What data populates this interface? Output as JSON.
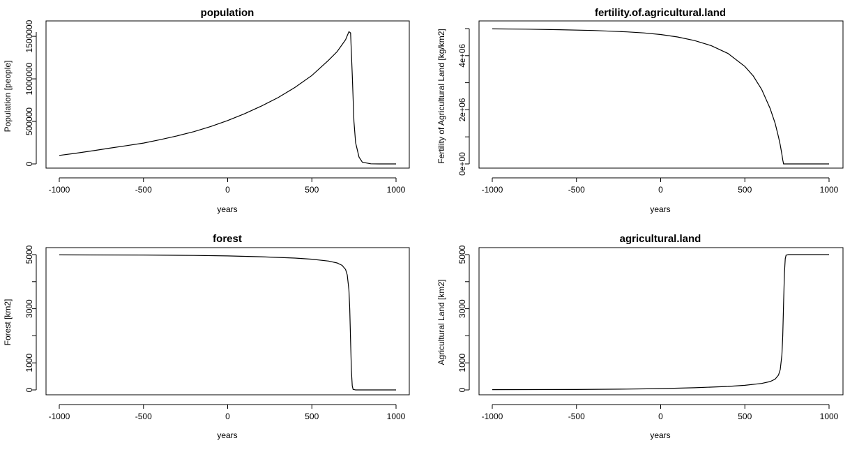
{
  "colors": {
    "background": "#ffffff",
    "line": "#000000",
    "axis": "#000000"
  },
  "chart_data": [
    {
      "type": "line",
      "title": "population",
      "xlabel": "years",
      "ylabel": "Population [people]",
      "xlim": [
        -1000,
        1000
      ],
      "ylim": [
        0,
        1550000
      ],
      "x_ticks": [
        -1000,
        -500,
        0,
        500,
        1000
      ],
      "x_tick_labels": [
        "-1000",
        "-500",
        "0",
        "500",
        "1000"
      ],
      "y_ticks": [
        0,
        500000,
        1000000,
        1500000
      ],
      "y_tick_labels": [
        "0",
        "500000",
        "1000000",
        "1500000"
      ],
      "grid": false,
      "series": [
        {
          "x": [
            -1000,
            -900,
            -800,
            -700,
            -600,
            -500,
            -400,
            -300,
            -200,
            -100,
            0,
            100,
            200,
            300,
            400,
            500,
            600,
            650,
            700,
            720,
            730,
            740,
            750,
            760,
            780,
            800,
            850,
            900,
            1000
          ],
          "y": [
            100000,
            126000,
            155000,
            185000,
            215000,
            245000,
            285000,
            330000,
            380000,
            440000,
            510000,
            590000,
            680000,
            780000,
            900000,
            1040000,
            1220000,
            1320000,
            1460000,
            1555000,
            1540000,
            1050000,
            500000,
            250000,
            80000,
            20000,
            2000,
            0,
            0
          ]
        }
      ]
    },
    {
      "type": "line",
      "title": "fertility.of.agricultural.land",
      "xlabel": "years",
      "ylabel": "Fertility of Agricultural Land [kg/km2]",
      "xlim": [
        -1000,
        1000
      ],
      "ylim": [
        0,
        5000000
      ],
      "x_ticks": [
        -1000,
        -500,
        0,
        500,
        1000
      ],
      "x_tick_labels": [
        "-1000",
        "-500",
        "0",
        "500",
        "1000"
      ],
      "y_ticks": [
        0,
        1000000,
        2000000,
        3000000,
        4000000,
        5000000
      ],
      "y_tick_labels": [
        "0e+00",
        "",
        "2e+06",
        "",
        "4e+06",
        ""
      ],
      "grid": false,
      "series": [
        {
          "x": [
            -1000,
            -800,
            -600,
            -400,
            -200,
            -100,
            0,
            100,
            200,
            300,
            400,
            500,
            550,
            600,
            650,
            680,
            700,
            710,
            720,
            725,
            730,
            740,
            800,
            900,
            1000
          ],
          "y": [
            4990000,
            4980000,
            4960000,
            4930000,
            4880000,
            4840000,
            4780000,
            4690000,
            4560000,
            4370000,
            4080000,
            3600000,
            3250000,
            2750000,
            2050000,
            1500000,
            1000000,
            700000,
            350000,
            150000,
            0,
            0,
            0,
            0,
            0
          ]
        }
      ]
    },
    {
      "type": "line",
      "title": "forest",
      "xlabel": "years",
      "ylabel": "Forest [km2]",
      "xlim": [
        -1000,
        1000
      ],
      "ylim": [
        0,
        5000
      ],
      "x_ticks": [
        -1000,
        -500,
        0,
        500,
        1000
      ],
      "x_tick_labels": [
        "-1000",
        "-500",
        "0",
        "500",
        "1000"
      ],
      "y_ticks": [
        0,
        1000,
        2000,
        3000,
        4000,
        5000
      ],
      "y_tick_labels": [
        "0",
        "1000",
        "",
        "3000",
        "",
        "5000"
      ],
      "grid": false,
      "series": [
        {
          "x": [
            -1000,
            -500,
            -200,
            0,
            200,
            400,
            500,
            600,
            650,
            680,
            700,
            710,
            720,
            725,
            730,
            735,
            740,
            745,
            760,
            800,
            900,
            1000
          ],
          "y": [
            4990,
            4985,
            4970,
            4950,
            4920,
            4870,
            4830,
            4760,
            4690,
            4600,
            4450,
            4250,
            3700,
            3000,
            1800,
            700,
            150,
            20,
            0,
            0,
            0,
            0
          ]
        }
      ]
    },
    {
      "type": "line",
      "title": "agricultural.land",
      "xlabel": "years",
      "ylabel": "Agricultural Land [km2]",
      "xlim": [
        -1000,
        1000
      ],
      "ylim": [
        0,
        5000
      ],
      "x_ticks": [
        -1000,
        -500,
        0,
        500,
        1000
      ],
      "x_tick_labels": [
        "-1000",
        "-500",
        "0",
        "500",
        "1000"
      ],
      "y_ticks": [
        0,
        1000,
        2000,
        3000,
        4000,
        5000
      ],
      "y_tick_labels": [
        "0",
        "1000",
        "",
        "3000",
        "",
        "5000"
      ],
      "grid": false,
      "series": [
        {
          "x": [
            -1000,
            -500,
            -200,
            0,
            200,
            400,
            500,
            600,
            650,
            680,
            700,
            710,
            720,
            725,
            730,
            735,
            740,
            745,
            760,
            800,
            900,
            1000
          ],
          "y": [
            10,
            15,
            30,
            50,
            80,
            130,
            170,
            240,
            310,
            400,
            550,
            750,
            1300,
            2000,
            3200,
            4300,
            4850,
            4980,
            5000,
            5000,
            5000,
            5000
          ]
        }
      ]
    }
  ]
}
